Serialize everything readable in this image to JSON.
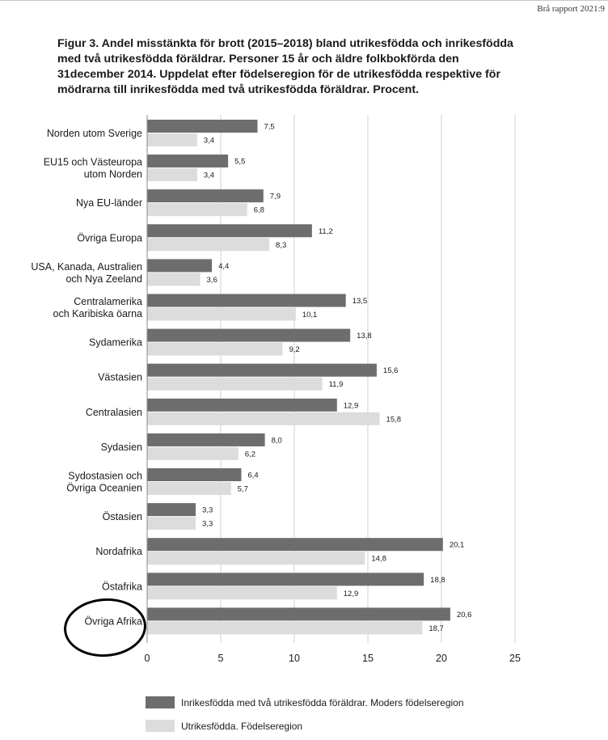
{
  "header": {
    "report_tag": "Brå rapport 2021:9"
  },
  "figure": {
    "title": "Figur 3. Andel misstänkta för brott (2015–2018) bland utrikesfödda och inrikes­födda med två utrikesfödda föräldrar. Personer 15 år och äldre folkbokförda den 31december 2014. Uppdelat efter födelseregion för de utrikesfödda respektive för mödrarna till inrikesfödda med två utrikesfödda föräldrar. Procent."
  },
  "chart_data": {
    "type": "bar",
    "orientation": "horizontal",
    "categories": [
      [
        "Norden utom Sverige"
      ],
      [
        "EU15 och Västeuropa",
        "utom Norden"
      ],
      [
        "Nya EU-länder"
      ],
      [
        "Övriga Europa"
      ],
      [
        "USA, Kanada, Australien",
        "och Nya Zeeland"
      ],
      [
        "Centralamerika",
        "och Karibiska öarna"
      ],
      [
        "Sydamerika"
      ],
      [
        "Västasien"
      ],
      [
        "Centralasien"
      ],
      [
        "Sydasien"
      ],
      [
        "Sydostasien och",
        "Övriga Oceanien"
      ],
      [
        "Östasien"
      ],
      [
        "Nordafrika"
      ],
      [
        "Östafrika"
      ],
      [
        "Övriga Afrika"
      ]
    ],
    "series": [
      {
        "name": "Inrikesfödda med två utrikesfödda föräldrar. Moders födelseregion",
        "color": "#6d6d6d",
        "values": [
          7.5,
          5.5,
          7.9,
          11.2,
          4.4,
          13.5,
          13.8,
          15.6,
          12.9,
          8.0,
          6.4,
          3.3,
          20.1,
          18.8,
          20.6
        ],
        "labels": [
          "7,5",
          "5,5",
          "7,9",
          "11,2",
          "4,4",
          "13,5",
          "13,8",
          "15,6",
          "12,9",
          "8,0",
          "6,4",
          "3,3",
          "20,1",
          "18,8",
          "20,6"
        ]
      },
      {
        "name": "Utrikesfödda. Födelseregion",
        "color": "#dcdcdc",
        "values": [
          3.4,
          3.4,
          6.8,
          8.3,
          3.6,
          10.1,
          9.2,
          11.9,
          15.8,
          6.2,
          5.7,
          3.3,
          14.8,
          12.9,
          18.7
        ],
        "labels": [
          "3,4",
          "3,4",
          "6,8",
          "8,3",
          "3,6",
          "10,1",
          "9,2",
          "11,9",
          "15,8",
          "6,2",
          "5,7",
          "3,3",
          "14,8",
          "12,9",
          "18,7"
        ]
      }
    ],
    "xlim": [
      0,
      25
    ],
    "xticks": [
      "0",
      "5",
      "10",
      "15",
      "20",
      "25"
    ],
    "grid": true,
    "highlight": "Övriga Afrika",
    "xlabel": "",
    "ylabel": ""
  },
  "legend": {
    "items": [
      {
        "label": "Inrikesfödda med två utrikesfödda föräldrar. Moders födelseregion",
        "color": "#6d6d6d"
      },
      {
        "label": "Utrikesfödda. Födelseregion",
        "color": "#dcdcdc"
      }
    ]
  }
}
